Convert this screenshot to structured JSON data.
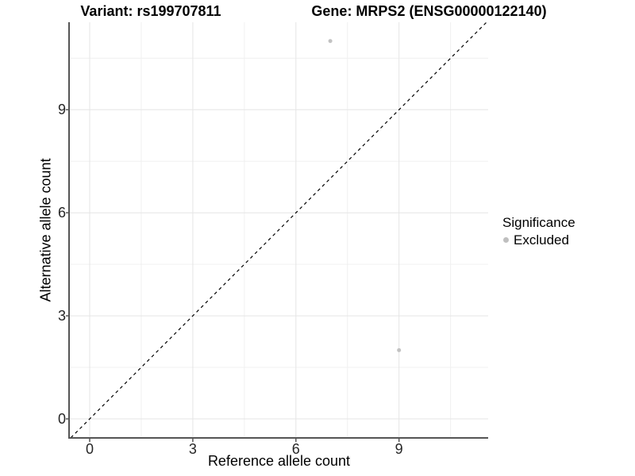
{
  "chart_data": {
    "type": "scatter",
    "title_left": "Variant: rs199707811",
    "title_right": "Gene: MRPS2 (ENSG00000122140)",
    "xlabel": "Reference allele count",
    "ylabel": "Alternative allele count",
    "x_ticks": [
      0,
      3,
      6,
      9
    ],
    "y_ticks": [
      0,
      3,
      6,
      9
    ],
    "x_minor_ticks": [
      1.5,
      4.5,
      7.5,
      10.5
    ],
    "y_minor_ticks": [
      1.5,
      4.5,
      7.5,
      10.5
    ],
    "xlim": [
      -0.58,
      11.59
    ],
    "ylim": [
      -0.55,
      11.55
    ],
    "grid": true,
    "identity_line": {
      "equation": "y = x",
      "style": "dashed",
      "color": "#000000"
    },
    "series": [
      {
        "name": "Excluded",
        "color": "#c2c2c2",
        "points": [
          [
            7,
            11
          ],
          [
            9,
            2
          ]
        ]
      }
    ],
    "legend": {
      "title": "Significance",
      "position": "right",
      "items": [
        {
          "label": "Excluded",
          "color": "#bfbfbf"
        }
      ]
    }
  },
  "colors": {
    "background": "#ffffff",
    "grid_major": "#e5e5e5",
    "grid_minor": "#f0f0f0",
    "axis_line": "#555555",
    "tick_mark": "#555555",
    "tick_text": "#262626",
    "point": "#c2c2c2"
  }
}
